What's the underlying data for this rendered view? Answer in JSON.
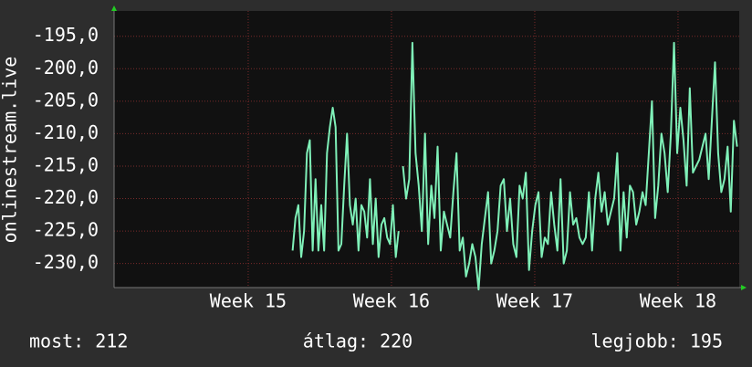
{
  "chart_data": {
    "type": "line",
    "y_label": "onlinestream.live",
    "x": [
      15.31,
      15.33,
      15.35,
      15.37,
      15.39,
      15.41,
      15.43,
      15.45,
      15.47,
      15.49,
      15.51,
      15.53,
      15.55,
      15.57,
      15.59,
      15.61,
      15.63,
      15.65,
      15.67,
      15.69,
      15.71,
      15.73,
      15.75,
      15.77,
      15.79,
      15.81,
      15.83,
      15.85,
      15.87,
      15.89,
      15.91,
      15.93,
      15.95,
      15.97,
      15.99,
      16.01,
      16.03,
      16.05,
      16.07,
      16.08,
      16.102,
      16.124,
      16.146,
      16.168,
      16.19,
      16.212,
      16.234,
      16.256,
      16.278,
      16.3,
      16.322,
      16.344,
      16.366,
      16.388,
      16.41,
      16.432,
      16.454,
      16.476,
      16.498,
      16.52,
      16.542,
      16.564,
      16.586,
      16.608,
      16.63,
      16.652,
      16.674,
      16.696,
      16.718,
      16.74,
      16.762,
      16.784,
      16.806,
      16.828,
      16.85,
      16.872,
      16.894,
      16.916,
      16.938,
      16.96,
      16.982,
      17.004,
      17.026,
      17.048,
      17.07,
      17.092,
      17.114,
      17.136,
      17.158,
      17.18,
      17.202,
      17.224,
      17.246,
      17.268,
      17.29,
      17.312,
      17.334,
      17.356,
      17.378,
      17.4,
      17.422,
      17.444,
      17.466,
      17.488,
      17.51,
      17.532,
      17.554,
      17.576,
      17.598,
      17.62,
      17.642,
      17.664,
      17.686,
      17.708,
      17.73,
      17.752,
      17.774,
      17.796,
      17.818,
      17.84,
      17.862,
      17.884,
      17.906,
      17.928,
      17.95,
      17.972,
      17.994,
      18.016,
      18.038,
      18.06,
      18.082,
      18.104,
      18.126,
      18.148,
      18.17,
      18.192,
      18.214,
      18.236,
      18.258,
      18.28,
      18.302,
      18.324,
      18.346,
      18.368,
      18.39,
      18.412
    ],
    "series": [
      {
        "name": "onlinestream.live",
        "color": "#7ff0b8",
        "values": [
          -228,
          -223,
          -221,
          -229,
          -225,
          -213,
          -211,
          -228,
          -217,
          -228,
          -221,
          -228,
          -213,
          -209,
          -206,
          -209,
          -228,
          -227,
          -218,
          -210,
          -221,
          -224,
          -220,
          -228,
          -221,
          -222,
          -226,
          -217,
          -227,
          -220,
          -229,
          -224,
          -223,
          -226,
          -227,
          -221,
          -229,
          -225,
          null,
          -215,
          -220,
          -217,
          -196,
          -213,
          -218,
          -225,
          -210,
          -227,
          -218,
          -223,
          -212,
          -228,
          -222,
          -224,
          -226,
          -219,
          -213,
          -228,
          -226,
          -232,
          -230,
          -227,
          -229,
          -234,
          -227,
          -223,
          -219,
          -230,
          -228,
          -225,
          -218,
          -217,
          -225,
          -220,
          -227,
          -229,
          -218,
          -220,
          -216,
          -231,
          -225,
          -221,
          -219,
          -229,
          -226,
          -227,
          -219,
          -224,
          -228,
          -217,
          -230,
          -228,
          -219,
          -224,
          -223,
          -226,
          -227,
          -226,
          -219,
          -228,
          -220,
          -216,
          -222,
          -219,
          -224,
          -222,
          -220,
          -213,
          -228,
          -219,
          -226,
          -218,
          -219,
          -224,
          -222,
          -219,
          -221,
          -213,
          -205,
          -223,
          -218,
          -210,
          -213,
          -219,
          -210,
          -196,
          -213,
          -206,
          -211,
          -218,
          -203,
          -216,
          -215,
          -214,
          -212,
          -210,
          -217,
          -208,
          -199,
          -213,
          -219,
          -217,
          -212,
          -222,
          -208,
          -212
        ]
      }
    ],
    "xlim": [
      14.064,
      18.427
    ],
    "xticks": [
      {
        "value": 15,
        "label": "Week 15"
      },
      {
        "value": 16,
        "label": "Week 16"
      },
      {
        "value": 17,
        "label": "Week 17"
      },
      {
        "value": 18,
        "label": "Week 18"
      }
    ],
    "ylim": [
      -233.7,
      -191.1
    ],
    "yticks": [
      {
        "value": -195,
        "label": "-195,0"
      },
      {
        "value": -200,
        "label": "-200,0"
      },
      {
        "value": -205,
        "label": "-205,0"
      },
      {
        "value": -210,
        "label": "-210,0"
      },
      {
        "value": -215,
        "label": "-215,0"
      },
      {
        "value": -220,
        "label": "-220,0"
      },
      {
        "value": -225,
        "label": "-225,0"
      },
      {
        "value": -230,
        "label": "-230,0"
      }
    ],
    "grid": true,
    "annotations": [
      "most: 212",
      "átlag: 220",
      "legjobb: 195"
    ]
  }
}
